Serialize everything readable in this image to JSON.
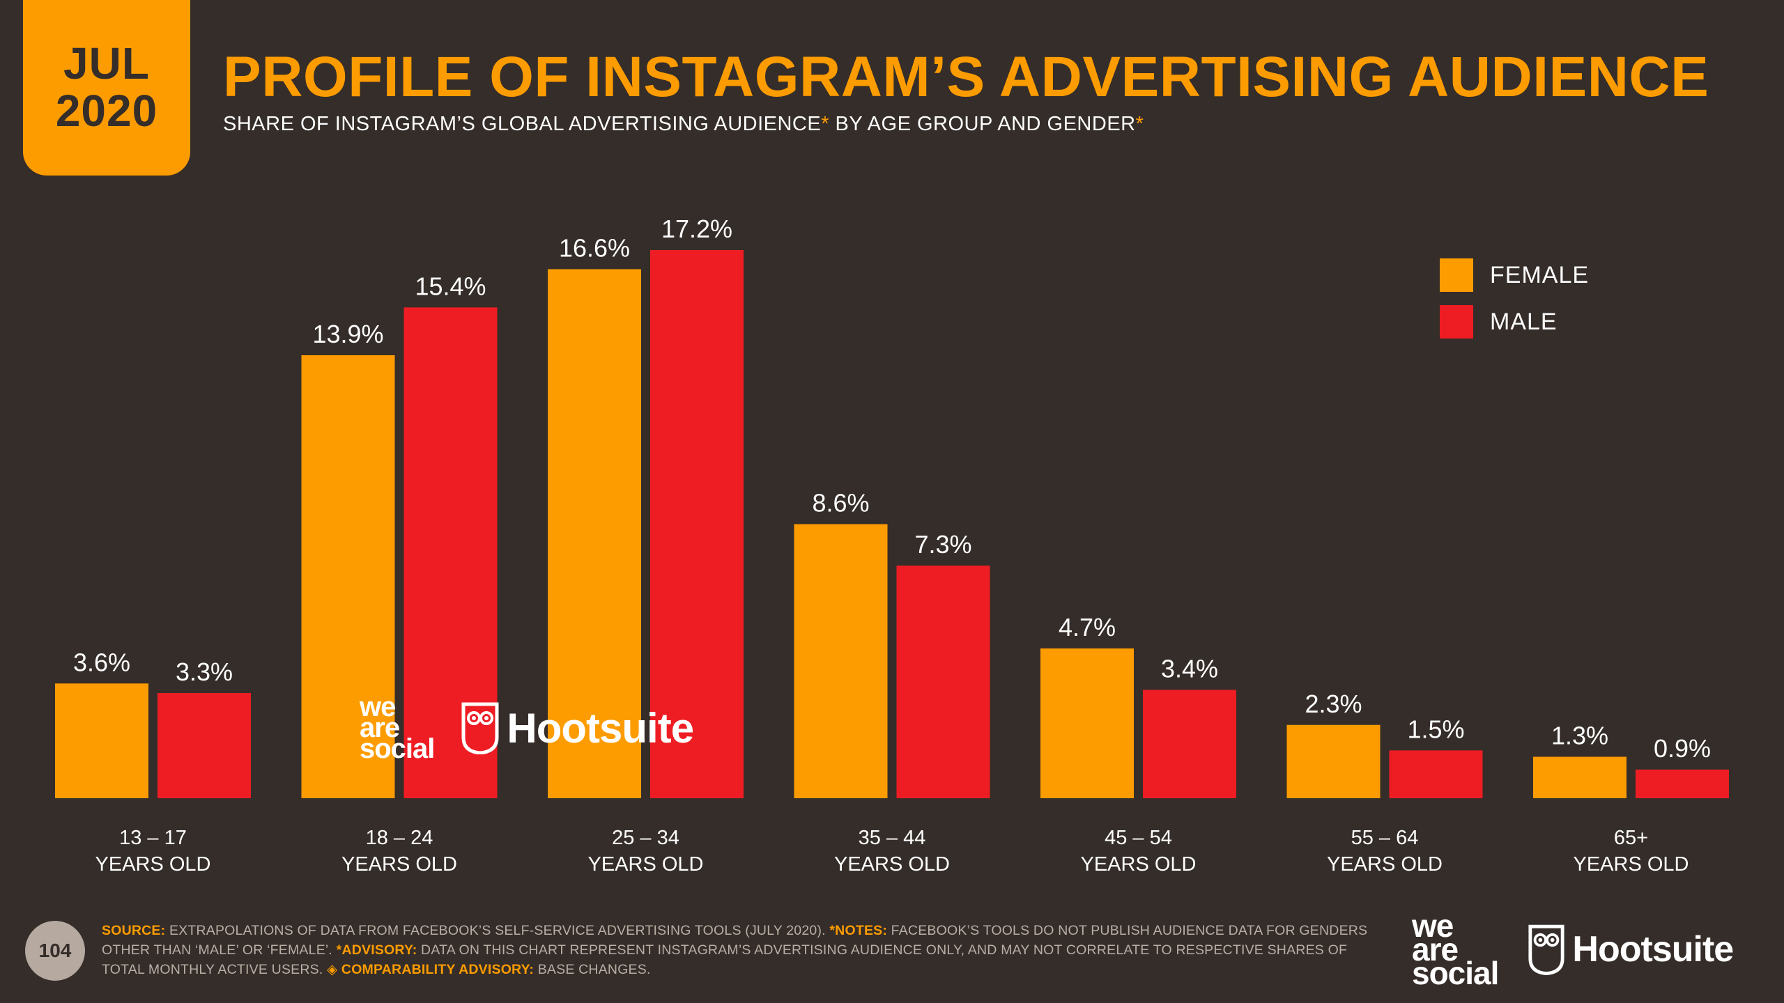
{
  "header": {
    "month": "JUL",
    "year": "2020",
    "title": "PROFILE OF INSTAGRAM’S ADVERTISING AUDIENCE",
    "subtitle_part1": "SHARE OF INSTAGRAM’S GLOBAL ADVERTISING AUDIENCE",
    "subtitle_star": "*",
    "subtitle_part2": " BY AGE GROUP AND GENDER",
    "subtitle_star2": "*"
  },
  "colors": {
    "female": "#fd9c00",
    "male": "#ee1d23",
    "background": "#352d29",
    "text": "#ffffff"
  },
  "legend": [
    {
      "label": "FEMALE",
      "color": "#fd9c00"
    },
    {
      "label": "MALE",
      "color": "#ee1d23"
    }
  ],
  "chart_data": {
    "type": "bar",
    "title": "PROFILE OF INSTAGRAM’S ADVERTISING AUDIENCE",
    "categories": [
      [
        "13 – 17",
        "YEARS OLD"
      ],
      [
        "18 – 24",
        "YEARS OLD"
      ],
      [
        "25 – 34",
        "YEARS OLD"
      ],
      [
        "35 – 44",
        "YEARS OLD"
      ],
      [
        "45 – 54",
        "YEARS OLD"
      ],
      [
        "55 – 64",
        "YEARS OLD"
      ],
      [
        "65+",
        "YEARS OLD"
      ]
    ],
    "series": [
      {
        "name": "FEMALE",
        "values": [
          3.6,
          13.9,
          16.6,
          8.6,
          4.7,
          2.3,
          1.3
        ],
        "labels": [
          "3.6%",
          "13.9%",
          "16.6%",
          "8.6%",
          "4.7%",
          "2.3%",
          "1.3%"
        ]
      },
      {
        "name": "MALE",
        "values": [
          3.3,
          15.4,
          17.2,
          7.3,
          3.4,
          1.5,
          0.9
        ],
        "labels": [
          "3.3%",
          "15.4%",
          "17.2%",
          "7.3%",
          "3.4%",
          "1.5%",
          "0.9%"
        ]
      }
    ],
    "ylim": [
      0,
      17.2
    ],
    "legend_position": "top-right"
  },
  "watermark": {
    "brand1": [
      "we",
      "are",
      "social"
    ],
    "brand2": "Hootsuite"
  },
  "footer": {
    "page_number": "104",
    "source_label": "SOURCE:",
    "source_text": " EXTRAPOLATIONS OF DATA FROM FACEBOOK’S SELF-SERVICE ADVERTISING TOOLS (JULY 2020). ",
    "notes_label": "*NOTES:",
    "notes_text": " FACEBOOK’S TOOLS DO NOT PUBLISH AUDIENCE DATA FOR GENDERS OTHER THAN ‘MALE’ OR ‘FEMALE’. ",
    "advisory_label": "*ADVISORY:",
    "advisory_text": " DATA ON THIS CHART REPRESENT INSTAGRAM’S ADVERTISING AUDIENCE ONLY, AND MAY NOT CORRELATE TO RESPECTIVE SHARES OF TOTAL MONTHLY ACTIVE USERS. ",
    "comparability_label": "◈ COMPARABILITY ADVISORY:",
    "comparability_text": " BASE CHANGES."
  }
}
